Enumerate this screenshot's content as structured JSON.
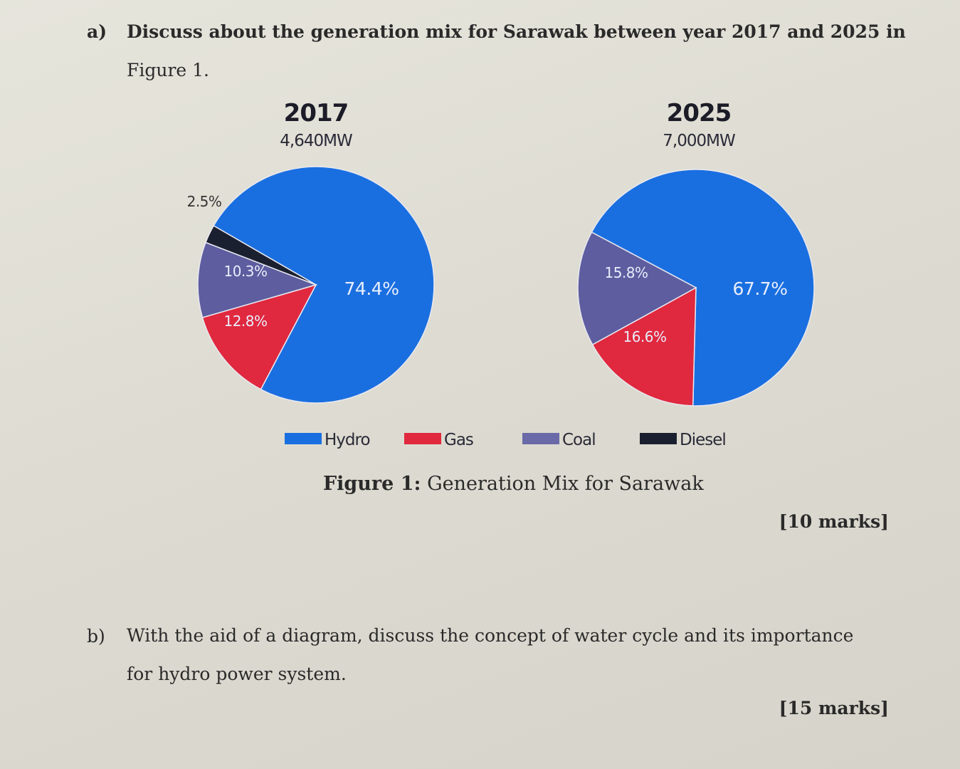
{
  "question_a": {
    "label": "a)",
    "text_line1": "Discuss about the generation mix for Sarawak between year 2017 and 2025 in",
    "text_line2": "Figure 1.",
    "marks": "[10 marks]"
  },
  "figure": {
    "caption_bold": "Figure 1:",
    "caption_text": "Generation Mix for Sarawak"
  },
  "chart_data": [
    {
      "type": "pie",
      "title": "2017",
      "subtitle": "4,640MW",
      "slices": [
        {
          "name": "Hydro",
          "value": 74.4,
          "label": "74.4%",
          "color": "#1a6fe0"
        },
        {
          "name": "Gas",
          "value": 12.8,
          "label": "12.8%",
          "color": "#e0283e"
        },
        {
          "name": "Coal",
          "value": 10.3,
          "label": "10.3%",
          "color": "#5d5d9f"
        },
        {
          "name": "Diesel",
          "value": 2.5,
          "label": "2.5%",
          "color": "#1b2030"
        }
      ]
    },
    {
      "type": "pie",
      "title": "2025",
      "subtitle": "7,000MW",
      "slices": [
        {
          "name": "Hydro",
          "value": 67.7,
          "label": "67.7%",
          "color": "#1a6fe0"
        },
        {
          "name": "Gas",
          "value": 16.6,
          "label": "16.6%",
          "color": "#e0283e"
        },
        {
          "name": "Coal",
          "value": 15.8,
          "label": "15.8%",
          "color": "#5d5d9f"
        }
      ]
    }
  ],
  "legend": [
    {
      "name": "Hydro",
      "color": "#1a6fe0"
    },
    {
      "name": "Gas",
      "color": "#e0283e"
    },
    {
      "name": "Coal",
      "color": "#6a6aa8"
    },
    {
      "name": "Diesel",
      "color": "#1b2030"
    }
  ],
  "question_b": {
    "label": "b)",
    "text_line1": "With the aid of a diagram, discuss the concept of water cycle and its importance",
    "text_line2": "for hydro power system.",
    "marks": "[15 marks]"
  }
}
